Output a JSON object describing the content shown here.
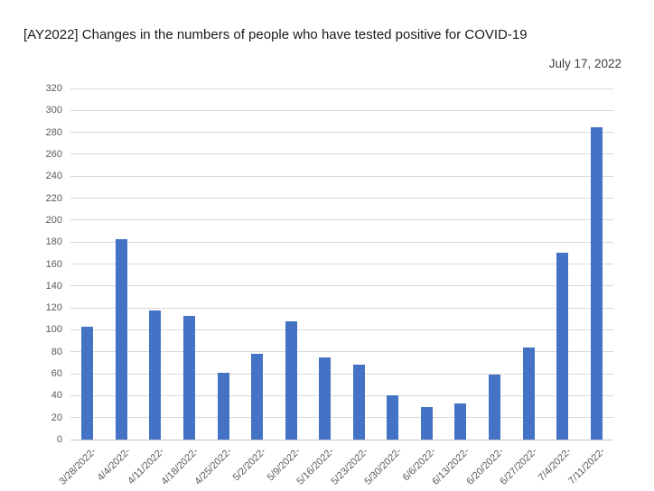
{
  "chart_data": {
    "type": "bar",
    "title": "[AY2022] Changes in the numbers of people who have tested positive for COVID-19",
    "subtitle": "July 17, 2022",
    "categories": [
      "3/28/2022-",
      "4/4/2022-",
      "4/11/2022-",
      "4/18/2022-",
      "4/25/2022-",
      "5/2/2022-",
      "5/9/2022-",
      "5/16/2022-",
      "5/23/2022-",
      "5/30/2022-",
      "6/6/2022-",
      "6/13/2022-",
      "6/20/2022-",
      "6/27/2022-",
      "7/4/2022-",
      "7/11/2022-"
    ],
    "values": [
      103,
      183,
      118,
      113,
      61,
      78,
      108,
      75,
      68,
      40,
      30,
      33,
      59,
      84,
      170,
      285
    ],
    "xlabel": "",
    "ylabel": "",
    "ylim": [
      0,
      320
    ],
    "ytick_step": 20,
    "grid": true,
    "legend_position": "none",
    "bar_color": "#4472C4",
    "gridline_color": "#D9D9D9",
    "axis_line_color": "#C6C6C6",
    "tick_label_color": "#595959"
  }
}
